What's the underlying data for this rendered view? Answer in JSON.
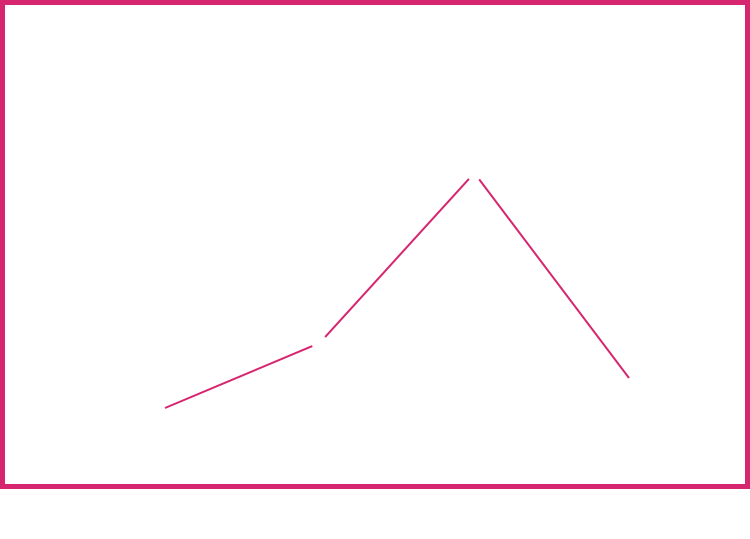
{
  "chart_data": {
    "type": "line",
    "title": "",
    "xlabel": "",
    "ylabel": "",
    "x": [
      1,
      2,
      3,
      4
    ],
    "series": [
      {
        "values": [
          1.1,
          2.4,
          5.8,
          1.7
        ]
      }
    ],
    "ylim": [
      0,
      8
    ],
    "grid": false,
    "legend": "none",
    "colors": {
      "line": "#d6266f",
      "frame": "#d6266f",
      "background": "#ffffff"
    }
  }
}
